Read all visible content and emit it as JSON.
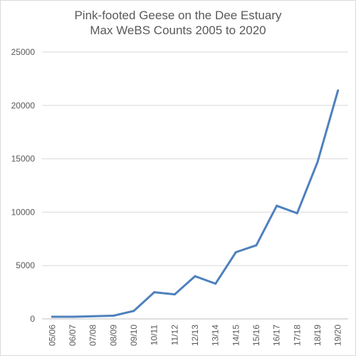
{
  "chart_data": {
    "type": "line",
    "title": "Pink-footed Geese on the Dee Estuary",
    "subtitle": "Max WeBS Counts 2005 to 2020",
    "xlabel": "",
    "ylabel": "",
    "categories": [
      "05/06",
      "06/07",
      "07/08",
      "08/09",
      "09/10",
      "10/11",
      "11/12",
      "12/13",
      "13/14",
      "14/15",
      "15/16",
      "16/17",
      "17/18",
      "18/19",
      "19/20"
    ],
    "series": [
      {
        "values": [
          200,
          200,
          250,
          300,
          750,
          2500,
          2300,
          4000,
          3300,
          6250,
          6900,
          10600,
          9900,
          14700,
          21400
        ]
      }
    ],
    "ylim": [
      0,
      25000
    ],
    "yticks": [
      0,
      5000,
      10000,
      15000,
      20000,
      25000
    ],
    "grid": "horizontal",
    "legend": "none",
    "colors": {
      "line": "#4f81bd",
      "grid": "#d9d9d9",
      "axis": "#bfbfbf",
      "text": "#595959"
    }
  }
}
